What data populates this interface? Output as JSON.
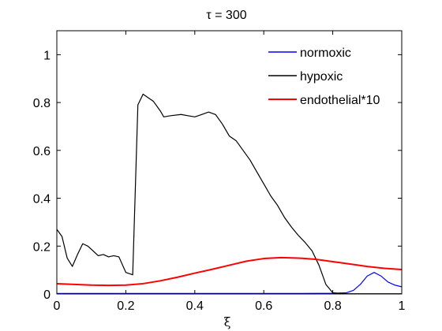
{
  "chart_data": {
    "type": "line",
    "title": "τ = 300",
    "xlabel": "ξ",
    "ylabel": "",
    "xlim": [
      0,
      1
    ],
    "ylim": [
      0,
      1.1
    ],
    "xticks": [
      0,
      0.2,
      0.4,
      0.6,
      0.8,
      1
    ],
    "xtick_labels": [
      "0",
      "0.2",
      "0.4",
      "0.6",
      "0.8",
      "1"
    ],
    "yticks": [
      0,
      0.2,
      0.4,
      0.6,
      0.8,
      1
    ],
    "ytick_labels": [
      "0",
      "0.2",
      "0.4",
      "0.6",
      "0.8",
      "1"
    ],
    "grid": false,
    "legend_position": "top-right",
    "series": [
      {
        "name": "normoxic",
        "color": "#0000ff",
        "x": [
          0,
          0.1,
          0.2,
          0.3,
          0.4,
          0.5,
          0.6,
          0.7,
          0.8,
          0.84,
          0.86,
          0.88,
          0.9,
          0.92,
          0.94,
          0.96,
          0.98,
          1.0
        ],
        "y": [
          0.002,
          0.002,
          0.002,
          0.002,
          0.002,
          0.002,
          0.002,
          0.002,
          0.003,
          0.005,
          0.015,
          0.04,
          0.075,
          0.09,
          0.075,
          0.05,
          0.037,
          0.03
        ]
      },
      {
        "name": "hypoxic",
        "color": "#000000",
        "x": [
          0,
          0.015,
          0.03,
          0.045,
          0.06,
          0.075,
          0.09,
          0.105,
          0.12,
          0.135,
          0.15,
          0.165,
          0.18,
          0.2,
          0.21,
          0.22,
          0.235,
          0.25,
          0.28,
          0.3,
          0.31,
          0.33,
          0.36,
          0.38,
          0.4,
          0.42,
          0.44,
          0.46,
          0.48,
          0.5,
          0.52,
          0.54,
          0.56,
          0.58,
          0.6,
          0.62,
          0.64,
          0.66,
          0.68,
          0.7,
          0.72,
          0.74,
          0.76,
          0.78,
          0.8,
          0.82,
          0.84,
          0.86,
          0.88,
          0.9,
          0.92,
          0.94,
          0.96,
          0.98,
          1.0
        ],
        "y": [
          0.27,
          0.24,
          0.15,
          0.115,
          0.165,
          0.21,
          0.2,
          0.18,
          0.16,
          0.165,
          0.155,
          0.16,
          0.155,
          0.09,
          0.085,
          0.08,
          0.79,
          0.835,
          0.805,
          0.765,
          0.74,
          0.745,
          0.75,
          0.745,
          0.74,
          0.75,
          0.76,
          0.75,
          0.71,
          0.66,
          0.64,
          0.6,
          0.56,
          0.51,
          0.46,
          0.41,
          0.37,
          0.32,
          0.28,
          0.245,
          0.215,
          0.18,
          0.12,
          0.04,
          0.005,
          0.002,
          0.001,
          0.001,
          0.001,
          0.001,
          0.001,
          0.001,
          0.001,
          0.001,
          0.001
        ]
      },
      {
        "name": "endothelial*10",
        "color": "#ff0000",
        "x": [
          0,
          0.05,
          0.1,
          0.15,
          0.2,
          0.25,
          0.3,
          0.35,
          0.4,
          0.45,
          0.5,
          0.55,
          0.6,
          0.65,
          0.7,
          0.75,
          0.8,
          0.85,
          0.9,
          0.95,
          1.0
        ],
        "y": [
          0.043,
          0.04,
          0.037,
          0.036,
          0.037,
          0.043,
          0.055,
          0.07,
          0.087,
          0.103,
          0.12,
          0.137,
          0.148,
          0.152,
          0.15,
          0.145,
          0.135,
          0.125,
          0.115,
          0.107,
          0.102
        ]
      }
    ]
  }
}
